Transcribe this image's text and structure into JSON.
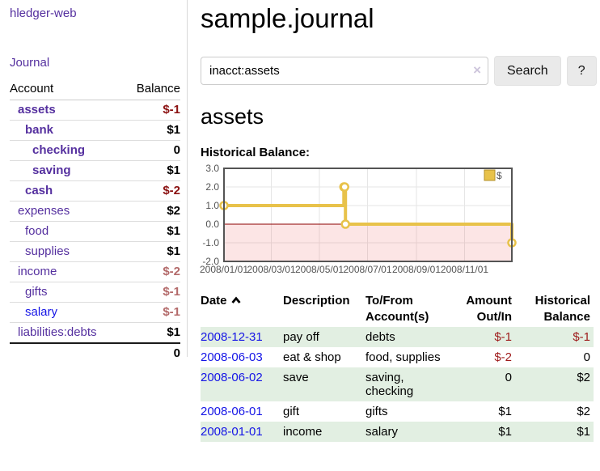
{
  "colors": {
    "link_purple": "#55309f",
    "link_blue": "#1515e6",
    "negative_strong": "#8b1212",
    "negative_muted": "#b36a6a",
    "negative_table": "#9e1b1b",
    "row_stripe_green": "#e2efe2",
    "chart_gold": "#e8c24a",
    "chart_negative_fill": "rgba(237,70,70,0.14)",
    "chart_zero_line": "#8b0000",
    "chart_border": "#545454",
    "chart_grid": "#e6e6e6",
    "axis_text": "#545454"
  },
  "sidebar": {
    "brand": "hledger-web",
    "nav_journal": "Journal",
    "accounts_table": {
      "headers": {
        "account": "Account",
        "balance": "Balance"
      },
      "rows": [
        {
          "name": "assets",
          "balance": "$-1",
          "indent": 0,
          "bold": true,
          "blue": false
        },
        {
          "name": "bank",
          "balance": "$1",
          "indent": 1,
          "bold": true,
          "blue": false
        },
        {
          "name": "checking",
          "balance": "0",
          "indent": 2,
          "bold": true,
          "blue": false
        },
        {
          "name": "saving",
          "balance": "$1",
          "indent": 2,
          "bold": true,
          "blue": false
        },
        {
          "name": "cash",
          "balance": "$-2",
          "indent": 1,
          "bold": true,
          "blue": false
        },
        {
          "name": "expenses",
          "balance": "$2",
          "indent": 0,
          "bold": false,
          "blue": false
        },
        {
          "name": "food",
          "balance": "$1",
          "indent": 1,
          "bold": false,
          "blue": false
        },
        {
          "name": "supplies",
          "balance": "$1",
          "indent": 1,
          "bold": false,
          "blue": false
        },
        {
          "name": "income",
          "balance": "$-2",
          "indent": 0,
          "bold": false,
          "blue": false
        },
        {
          "name": "gifts",
          "balance": "$-1",
          "indent": 1,
          "bold": false,
          "blue": false
        },
        {
          "name": "salary",
          "balance": "$-1",
          "indent": 1,
          "bold": false,
          "blue": true
        },
        {
          "name": "liabilities:debts",
          "balance": "$1",
          "indent": 0,
          "bold": false,
          "blue": false
        }
      ],
      "total": "0"
    }
  },
  "main": {
    "title": "sample.journal",
    "search": {
      "value": "inacct:assets",
      "clear_icon": "×",
      "search_button": "Search",
      "help_button": "?"
    },
    "account_heading": "assets",
    "chart_title": "Historical Balance:"
  },
  "chart_data": {
    "type": "line",
    "step": true,
    "title": "Historical Balance",
    "series": [
      {
        "name": "$",
        "points": [
          {
            "date": "2008-01-01",
            "value": 1
          },
          {
            "date": "2008-06-01",
            "value": 2
          },
          {
            "date": "2008-06-02",
            "value": 2
          },
          {
            "date": "2008-06-03",
            "value": 0
          },
          {
            "date": "2008-12-31",
            "value": -1
          }
        ]
      }
    ],
    "xdomain": [
      "2008-01-01",
      "2008-12-31"
    ],
    "ydomain": [
      -2,
      3
    ],
    "yticks": [
      {
        "value": 3,
        "label": "3.0"
      },
      {
        "value": 2,
        "label": "2.0"
      },
      {
        "value": 1,
        "label": "1.0"
      },
      {
        "value": 0,
        "label": "0.0"
      },
      {
        "value": -1,
        "label": "-1.0"
      },
      {
        "value": -2,
        "label": "-2.0"
      }
    ],
    "xticks": [
      {
        "date": "2008-01-01",
        "label": "2008/01/01"
      },
      {
        "date": "2008-03-01",
        "label": "2008/03/01"
      },
      {
        "date": "2008-05-01",
        "label": "2008/05/01"
      },
      {
        "date": "2008-07-01",
        "label": "2008/07/01"
      },
      {
        "date": "2008-09-01",
        "label": "2008/09/01"
      },
      {
        "date": "2008-11-01",
        "label": "2008/11/01"
      }
    ],
    "legend": {
      "label": "$",
      "position": "top-right"
    },
    "negative_region_shaded": true,
    "grid": true
  },
  "register_table": {
    "headers": {
      "date": "Date",
      "description": "Description",
      "accounts": "To/From Account(s)",
      "amount": "Amount Out/In",
      "balance": "Historical Balance"
    },
    "sort_icon_name": "chevron-up",
    "rows": [
      {
        "date": "2008-12-31",
        "description": "pay off",
        "accounts_lines": [
          "debts"
        ],
        "amount": "$-1",
        "balance": "$-1"
      },
      {
        "date": "2008-06-03",
        "description": "eat & shop",
        "accounts_lines": [
          "food, supplies"
        ],
        "amount": "$-2",
        "balance": "0"
      },
      {
        "date": "2008-06-02",
        "description": "save",
        "accounts_lines": [
          "saving,",
          "checking"
        ],
        "amount": "0",
        "balance": "$2"
      },
      {
        "date": "2008-06-01",
        "description": "gift",
        "accounts_lines": [
          "gifts"
        ],
        "amount": "$1",
        "balance": "$2"
      },
      {
        "date": "2008-01-01",
        "description": "income",
        "accounts_lines": [
          "salary"
        ],
        "amount": "$1",
        "balance": "$1"
      }
    ]
  }
}
